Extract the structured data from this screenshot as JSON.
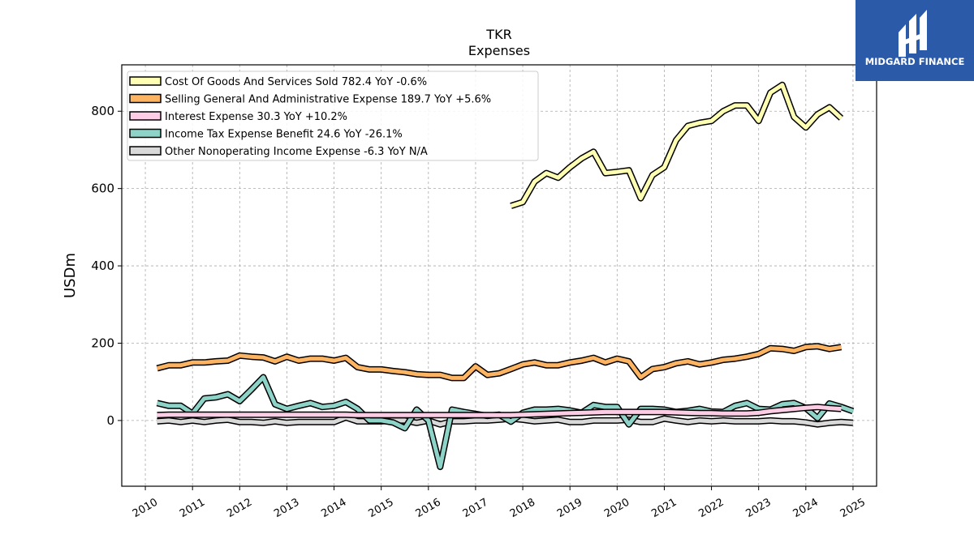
{
  "brand": {
    "name": "MIDGARD FINANCE",
    "logo_icon": "midgard-bars-icon",
    "background": "#2b5aa9",
    "text_color": "#ffffff"
  },
  "chart_data": {
    "type": "line",
    "title": "TKR",
    "subtitle": "Expenses",
    "ylabel": "USDm",
    "xlabel": "",
    "xlim": [
      2009.5,
      2025.5
    ],
    "ylim": [
      -170,
      920
    ],
    "yticks": [
      0,
      200,
      400,
      600,
      800
    ],
    "xticks": [
      "2010",
      "2011",
      "2012",
      "2013",
      "2014",
      "2015",
      "2016",
      "2017",
      "2018",
      "2019",
      "2020",
      "2021",
      "2022",
      "2023",
      "2024",
      "2025"
    ],
    "grid": true,
    "legend_position": "top-left",
    "series": [
      {
        "name": "Cost Of Goods And Services Sold  782.4 YoY -0.6%",
        "color": "#ffffb3",
        "start": 2017.75,
        "values": [
          555,
          565,
          618,
          640,
          628,
          655,
          678,
          695,
          640,
          643,
          647,
          575,
          635,
          655,
          725,
          762,
          770,
          775,
          800,
          815,
          815,
          775,
          848,
          868,
          785,
          758,
          792,
          810,
          782
        ]
      },
      {
        "name": "Selling General And Administrative Expense  189.7 YoY +5.6%",
        "color": "#fdb462",
        "start": 2010.25,
        "values": [
          135,
          143,
          143,
          150,
          150,
          153,
          155,
          168,
          165,
          163,
          153,
          165,
          155,
          160,
          160,
          155,
          162,
          138,
          132,
          132,
          128,
          125,
          120,
          118,
          118,
          110,
          110,
          140,
          118,
          122,
          133,
          145,
          150,
          143,
          143,
          150,
          155,
          162,
          150,
          160,
          153,
          112,
          133,
          138,
          148,
          153,
          145,
          150,
          157,
          160,
          165,
          172,
          187,
          185,
          180,
          190,
          192,
          185,
          190
        ]
      },
      {
        "name": "Interest Expense  30.3 YoY +10.2%",
        "color": "#fccde5",
        "start": 2010.25,
        "values": [
          14,
          15,
          15,
          15,
          15,
          15,
          15,
          15,
          15,
          15,
          15,
          15,
          15,
          15,
          15,
          15,
          15,
          14,
          14,
          14,
          14,
          14,
          14,
          14,
          14,
          14,
          14,
          14,
          14,
          14,
          14,
          15,
          16,
          17,
          18,
          19,
          20,
          21,
          22,
          22,
          22,
          22,
          22,
          22,
          21,
          20,
          19,
          19,
          18,
          18,
          18,
          20,
          24,
          27,
          30,
          33,
          35,
          32,
          30
        ]
      },
      {
        "name": "Income Tax Expense Benefit  24.6 YoY -26.1%",
        "color": "#8dd3c7",
        "start": 2010.25,
        "values": [
          45,
          38,
          38,
          18,
          57,
          60,
          68,
          50,
          80,
          112,
          42,
          30,
          38,
          45,
          35,
          38,
          48,
          30,
          0,
          0,
          -5,
          -20,
          28,
          0,
          -120,
          28,
          22,
          17,
          12,
          15,
          -3,
          20,
          28,
          28,
          30,
          26,
          20,
          40,
          35,
          35,
          -10,
          30,
          30,
          28,
          22,
          25,
          30,
          23,
          22,
          38,
          45,
          30,
          28,
          42,
          45,
          32,
          6,
          44,
          35,
          24
        ]
      },
      {
        "name": "Other Nonoperating Income Expense  -6.3 YoY N/A",
        "color": "#d9d9d9",
        "start": 2010.25,
        "values": [
          -2,
          0,
          -4,
          0,
          -4,
          0,
          2,
          -4,
          -4,
          -6,
          -2,
          -6,
          -4,
          -4,
          -4,
          -4,
          8,
          -2,
          -2,
          -2,
          0,
          0,
          -6,
          0,
          -10,
          -2,
          -2,
          0,
          0,
          2,
          5,
          2,
          -2,
          0,
          2,
          -4,
          -4,
          0,
          0,
          0,
          2,
          -4,
          -4,
          5,
          0,
          -4,
          0,
          -2,
          0,
          -2,
          -2,
          -2,
          0,
          -2,
          -2,
          -5,
          -10,
          -6,
          -4,
          -6
        ]
      }
    ]
  }
}
